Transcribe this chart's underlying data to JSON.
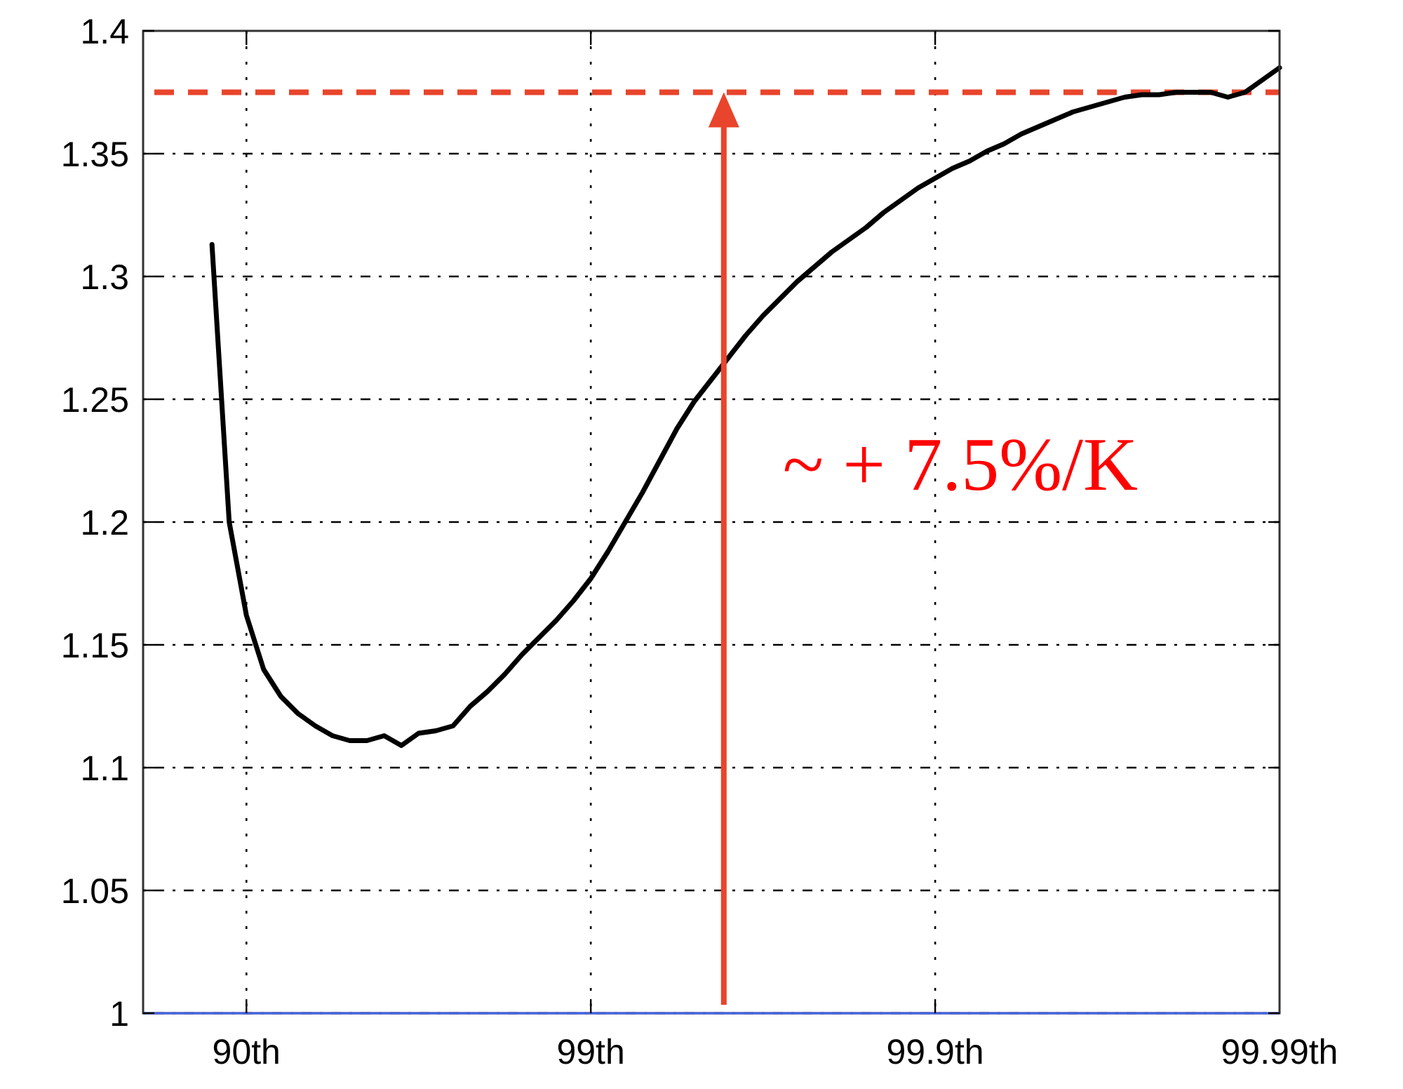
{
  "chart_data": {
    "type": "line",
    "categories": [
      null,
      null,
      null,
      null,
      null,
      null,
      "90th",
      null,
      null,
      null,
      null,
      null,
      null,
      null,
      null,
      null,
      null,
      null,
      null,
      null,
      null,
      null,
      null,
      null,
      null,
      null,
      "99th",
      null,
      null,
      null,
      null,
      null,
      null,
      null,
      null,
      null,
      null,
      null,
      null,
      null,
      null,
      null,
      null,
      null,
      null,
      null,
      "99.9th",
      null,
      null,
      null,
      null,
      null,
      null,
      null,
      null,
      null,
      null,
      null,
      null,
      null,
      null,
      null,
      null,
      null,
      null,
      null,
      "99.99th"
    ],
    "series": [
      {
        "color": "#000000",
        "values": [
          null,
          null,
          null,
          null,
          1.313,
          1.2,
          1.162,
          1.14,
          1.129,
          1.122,
          1.117,
          1.113,
          1.111,
          1.111,
          1.113,
          1.109,
          1.114,
          1.115,
          1.117,
          1.125,
          1.131,
          1.138,
          1.146,
          1.153,
          1.16,
          1.168,
          1.177,
          1.188,
          1.2,
          1.212,
          1.225,
          1.238,
          1.249,
          1.258,
          1.267,
          1.276,
          1.284,
          1.291,
          1.298,
          1.304,
          1.31,
          1.315,
          1.32,
          1.326,
          1.331,
          1.336,
          1.34,
          1.344,
          1.347,
          1.351,
          1.354,
          1.358,
          1.361,
          1.364,
          1.367,
          1.369,
          1.371,
          1.373,
          1.374,
          1.374,
          1.375,
          1.375,
          1.375,
          1.373,
          1.375,
          1.38,
          1.385
        ]
      }
    ],
    "ylim": [
      1,
      1.4
    ],
    "yticks": [
      1,
      1.05,
      1.1,
      1.15,
      1.2,
      1.25,
      1.3,
      1.35,
      1.4
    ],
    "grid": true,
    "ref_lines": [
      {
        "axis": "y",
        "value": 1.375,
        "color": "#e8452c",
        "line_style": "dashed"
      }
    ],
    "annotations": [
      "~ + 7.5%/K"
    ]
  }
}
